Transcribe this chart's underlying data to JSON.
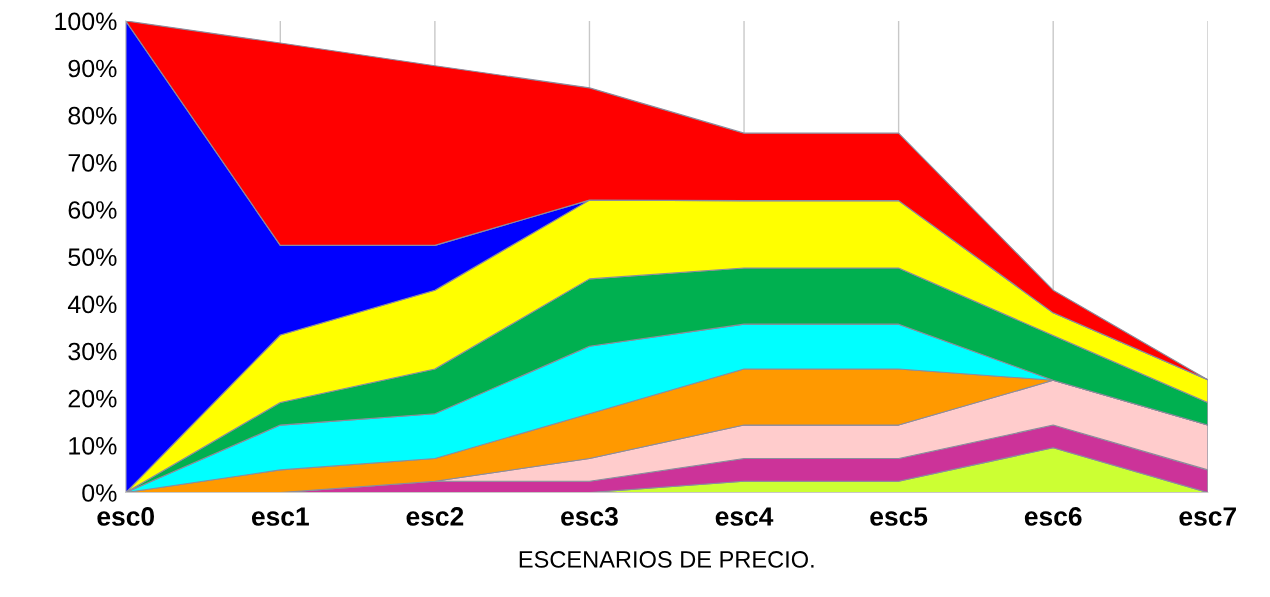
{
  "chart_data": {
    "type": "area",
    "stacked": true,
    "xlabel": "ESCENARIOS DE PRECIO.",
    "categories": [
      "esc0",
      "esc1",
      "esc2",
      "esc3",
      "esc4",
      "esc5",
      "esc6",
      "esc7"
    ],
    "series": [
      {
        "color": "#ccff33",
        "values": [
          0,
          0,
          0,
          0,
          2.4,
          2.4,
          9.5,
          0
        ]
      },
      {
        "color": "#cc3399",
        "values": [
          0,
          0,
          2.4,
          2.4,
          4.8,
          4.8,
          4.8,
          4.8
        ]
      },
      {
        "color": "#ffcccc",
        "values": [
          0,
          0,
          0,
          4.8,
          7.1,
          7.1,
          9.5,
          9.5
        ]
      },
      {
        "color": "#ff9900",
        "values": [
          0,
          4.8,
          4.8,
          9.5,
          11.9,
          11.9,
          0,
          0
        ]
      },
      {
        "color": "#00ffff",
        "values": [
          0,
          9.5,
          9.5,
          14.3,
          9.5,
          9.5,
          0,
          0
        ]
      },
      {
        "color": "#00b050",
        "values": [
          0,
          4.8,
          9.5,
          14.3,
          11.9,
          11.9,
          9.5,
          4.8
        ]
      },
      {
        "color": "#ffff00",
        "values": [
          0,
          14.3,
          16.7,
          16.7,
          14.3,
          14.3,
          4.8,
          4.8
        ]
      },
      {
        "color": "#0000ff",
        "values": [
          100,
          19.0,
          9.5,
          0,
          0,
          0,
          0,
          0
        ]
      },
      {
        "color": "#ff0000",
        "values": [
          0,
          42.9,
          38.1,
          23.8,
          14.3,
          14.3,
          4.8,
          0
        ]
      }
    ],
    "ylim": [
      0,
      100
    ],
    "yticks": [
      {
        "value": 0,
        "label": "0%"
      },
      {
        "value": 10,
        "label": "10%"
      },
      {
        "value": 20,
        "label": "20%"
      },
      {
        "value": 30,
        "label": "30%"
      },
      {
        "value": 40,
        "label": "40%"
      },
      {
        "value": 50,
        "label": "50%"
      },
      {
        "value": 60,
        "label": "60%"
      },
      {
        "value": 70,
        "label": "70%"
      },
      {
        "value": 80,
        "label": "80%"
      },
      {
        "value": 90,
        "label": "90%"
      },
      {
        "value": 100,
        "label": "100%"
      }
    ],
    "grid": "x",
    "legend": false
  }
}
